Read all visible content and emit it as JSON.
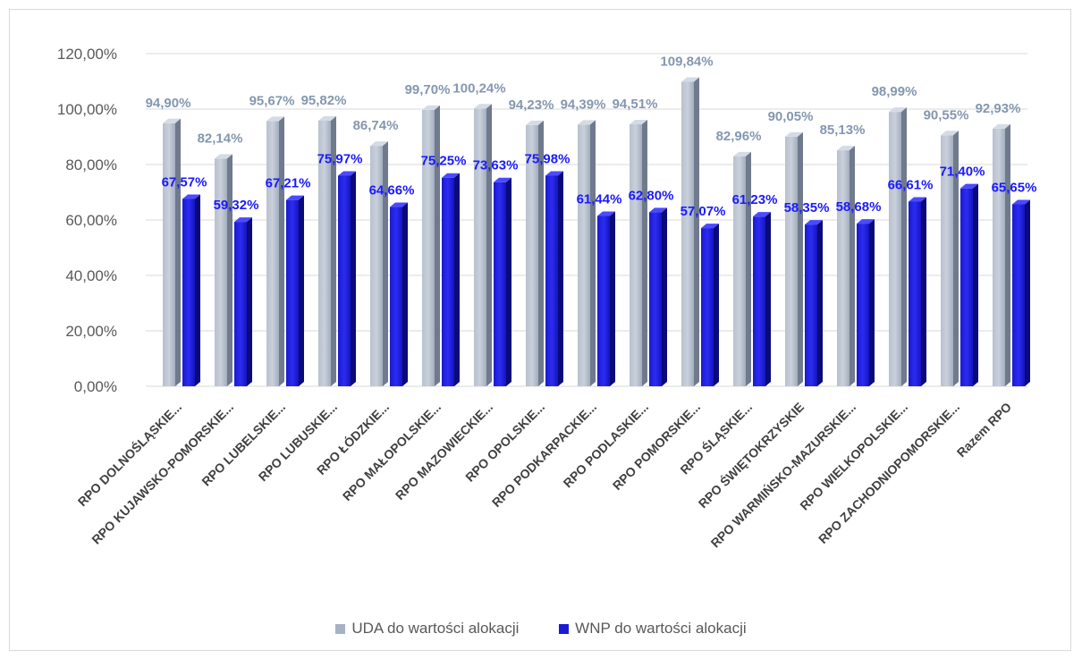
{
  "chart_data": {
    "type": "bar",
    "title": "",
    "xlabel": "",
    "ylabel": "",
    "ylim": [
      0,
      120
    ],
    "yticks": [
      "0,00%",
      "20,00%",
      "40,00%",
      "60,00%",
      "80,00%",
      "100,00%",
      "120,00%"
    ],
    "grid": true,
    "legend_position": "bottom",
    "categories": [
      "RPO DOLNOŚLĄSKIE...",
      "RPO KUJAWSKO-POMORSKIE...",
      "RPO LUBELSKIE...",
      "RPO LUBUSKIE...",
      "RPO ŁÓDZKIE...",
      "RPO MAŁOPOLSKIE...",
      "RPO MAZOWIECKIE...",
      "RPO OPOLSKIE...",
      "RPO PODKARPACKIE...",
      "RPO PODLASKIE...",
      "RPO POMORSKIE...",
      "RPO ŚLĄSKIE...",
      "RPO ŚWIĘTOKRZYSKIE",
      "RPO WARMIŃSKO-MAZURSKIE...",
      "RPO WIELKOPOLSKIE...",
      "RPO ZACHODNIOPOMORSKIE...",
      "Razem RPO"
    ],
    "series": [
      {
        "name": "UDA do wartości alokacji",
        "color": "#a6b1c3",
        "values": [
          94.9,
          82.14,
          95.67,
          95.82,
          86.74,
          99.7,
          100.24,
          94.23,
          94.39,
          94.51,
          109.84,
          82.96,
          90.05,
          85.13,
          98.99,
          90.55,
          92.93
        ],
        "labels": [
          "94,90%",
          "82,14%",
          "95,67%",
          "95,82%",
          "86,74%",
          "99,70%",
          "100,24%",
          "94,23%",
          "94,39%",
          "94,51%",
          "109,84%",
          "82,96%",
          "90,05%",
          "85,13%",
          "98,99%",
          "90,55%",
          "92,93%"
        ]
      },
      {
        "name": "WNP do wartości alokacji",
        "color": "#1a1ad9",
        "values": [
          67.57,
          59.32,
          67.21,
          75.97,
          64.66,
          75.25,
          73.63,
          75.98,
          61.44,
          62.8,
          57.07,
          61.23,
          58.35,
          58.68,
          66.61,
          71.4,
          65.65
        ],
        "labels": [
          "67,57%",
          "59,32%",
          "67,21%",
          "75,97%",
          "64,66%",
          "75,25%",
          "73,63%",
          "75,98%",
          "61,44%",
          "62,80%",
          "57,07%",
          "61,23%",
          "58,35%",
          "58,68%",
          "66,61%",
          "71,40%",
          "65,65%"
        ]
      }
    ]
  }
}
